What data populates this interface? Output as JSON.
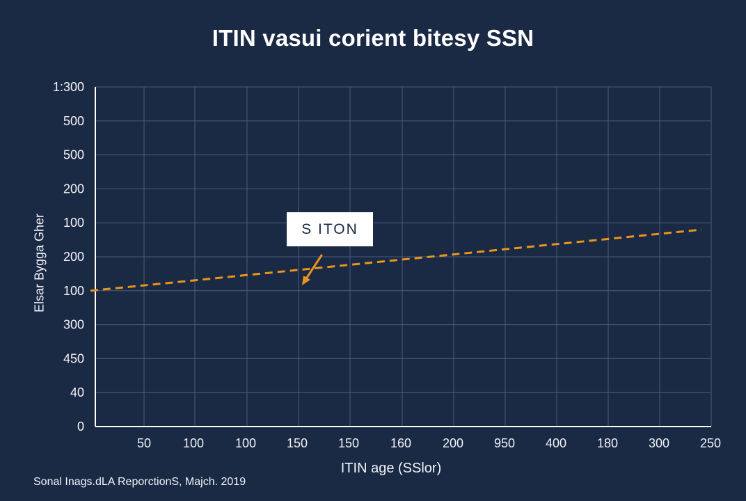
{
  "chart_data": {
    "type": "line",
    "title": "ITIN vasui corient bitesy SSN",
    "xlabel": "ITIN age (SSlor)",
    "ylabel": "Elsar Bygga Gher",
    "x_tick_labels": [
      "50",
      "100",
      "100",
      "150",
      "150",
      "160",
      "200",
      "950",
      "400",
      "180",
      "300",
      "250"
    ],
    "y_tick_labels": [
      "1:300",
      "500",
      "500",
      "200",
      "100",
      "200",
      "100",
      "300",
      "450",
      "40",
      "0"
    ],
    "series": [
      {
        "values": [
          40,
          41.5,
          43,
          44.5,
          46,
          47.5,
          49,
          50.5,
          52,
          53.5,
          55,
          56.5,
          58
        ],
        "color": "#e8951f",
        "style": "dashed"
      }
    ],
    "grid": true,
    "annotation": {
      "text": "S ITON",
      "arrow_icon": "arrow-down-left-icon",
      "color": "#e8951f"
    },
    "source": "Sonal Inags.dLA ReporctionS, Majch. 2019"
  },
  "colors": {
    "background": "#1a2944",
    "grid": "#4b5d7c",
    "text": "#f2f4f8",
    "series": "#e8951f"
  }
}
